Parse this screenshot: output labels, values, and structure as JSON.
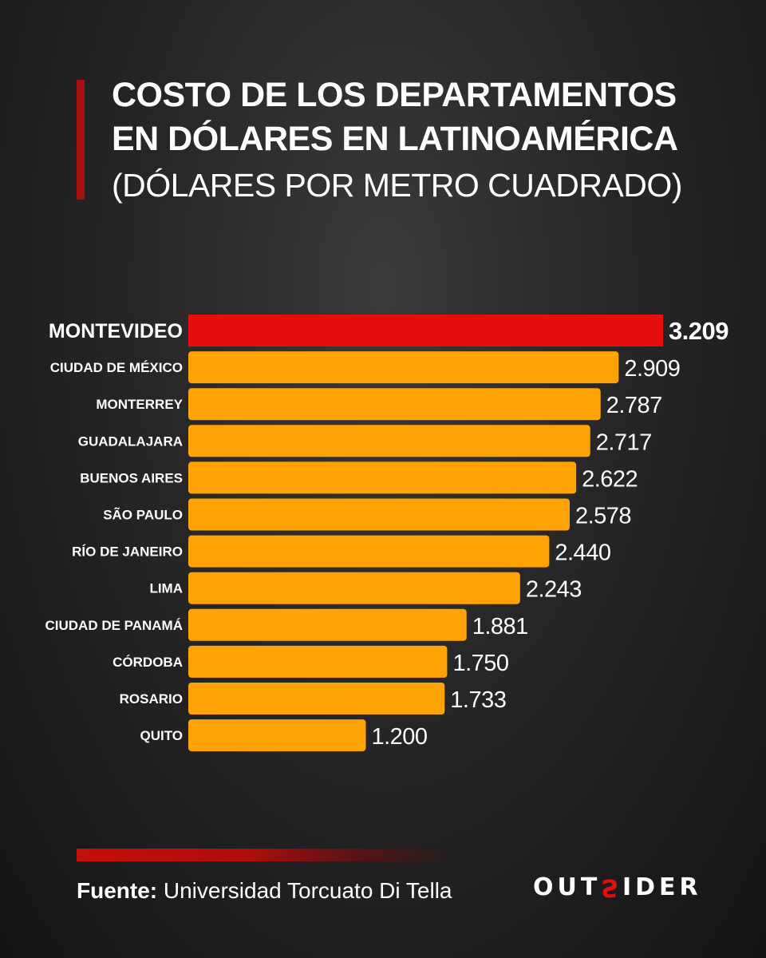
{
  "header": {
    "title_line1": "COSTO DE LOS DEPARTAMENTOS",
    "title_line2": "EN DÓLARES EN LATINOAMÉRICA",
    "subtitle": "(DÓLARES POR METRO CUADRADO)"
  },
  "chart_data": {
    "type": "bar",
    "orientation": "horizontal",
    "categories": [
      "MONTEVIDEO",
      "CIUDAD DE MÉXICO",
      "MONTERREY",
      "GUADALAJARA",
      "BUENOS AIRES",
      "SÃO PAULO",
      "RÍO DE JANEIRO",
      "LIMA",
      "CIUDAD DE PANAMÁ",
      "CÓRDOBA",
      "ROSARIO",
      "QUITO"
    ],
    "values": [
      3209,
      2909,
      2787,
      2717,
      2622,
      2578,
      2440,
      2243,
      1881,
      1750,
      1733,
      1200
    ],
    "value_labels": [
      "3.209",
      "2.909",
      "2.787",
      "2.717",
      "2.622",
      "2.578",
      "2.440",
      "2.243",
      "1.881",
      "1.750",
      "1.733",
      "1.200"
    ],
    "highlight_index": 0,
    "colors": {
      "highlight": "#e60d0d",
      "bar": "#ffa305"
    },
    "title": "COSTO DE LOS DEPARTAMENTOS EN DÓLARES EN LATINOAMÉRICA",
    "subtitle": "(DÓLARES POR METRO CUADRADO)",
    "grid": false,
    "legend": "none"
  },
  "footer": {
    "source_label": "Fuente:",
    "source_text": "Universidad Torcuato Di Tella",
    "logo_left": "OUT",
    "logo_s": "S",
    "logo_right": "IDER"
  }
}
